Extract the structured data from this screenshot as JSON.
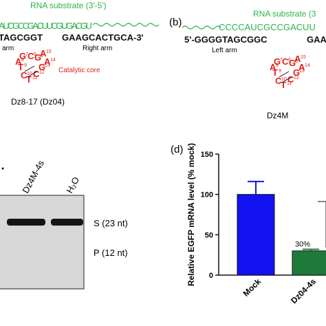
{
  "panel_a": {
    "substrate_label": "RNA substrate (3'-5')",
    "rna": "AUCGCCGACUUCGUGACGU",
    "left_dna": "TAGCGGT",
    "right_dna": "GAAGCACTGCA-3'",
    "left_arm": "arm",
    "right_arm": "Right arm",
    "core_label": "Catalytic core",
    "core": [
      "A",
      "A",
      "G",
      "C",
      "T",
      "C",
      "T",
      "A",
      "G",
      "C",
      "G"
    ],
    "core_numbers": [
      "15",
      "14",
      "13",
      "12",
      "11",
      "10",
      "9",
      "8",
      "7",
      "6",
      "5"
    ],
    "name": "Dz8-17 (Dz04)"
  },
  "panel_b": {
    "tag": "(b)",
    "substrate_label": "RNA substrate (3",
    "rna": "CCCCAUCGCCGACUU",
    "left_dna": "5'-GGGGTAGCGGC",
    "right_dna": "GAAC",
    "left_arm": "Left arm",
    "core": [
      "A",
      "A",
      "G",
      "C",
      "T",
      "C",
      "T",
      "A",
      "G",
      "C",
      "G"
    ],
    "core_numbers": [
      "15",
      "14",
      "13",
      "12",
      "11",
      "10",
      "9",
      "8",
      "7",
      "6",
      "5"
    ],
    "name": "Dz4M"
  },
  "panel_c": {
    "lanes": [
      "Dz4M-4s",
      "H₂O"
    ],
    "band_s": "S (23 nt)",
    "band_p": "P (12 nt)"
  },
  "chart_data": {
    "type": "bar",
    "tag": "(d)",
    "y_label": "Relative EGFP mRNA level (% mock)",
    "categories": [
      "Mock",
      "Dz04-4s"
    ],
    "values": [
      100,
      30
    ],
    "errors": [
      16,
      2
    ],
    "value_labels": [
      null,
      "30%"
    ],
    "colors": [
      "#1212f0",
      "#1e7a3a"
    ],
    "ylim": [
      0,
      150
    ],
    "yticks": [
      0,
      50,
      100,
      150
    ]
  }
}
